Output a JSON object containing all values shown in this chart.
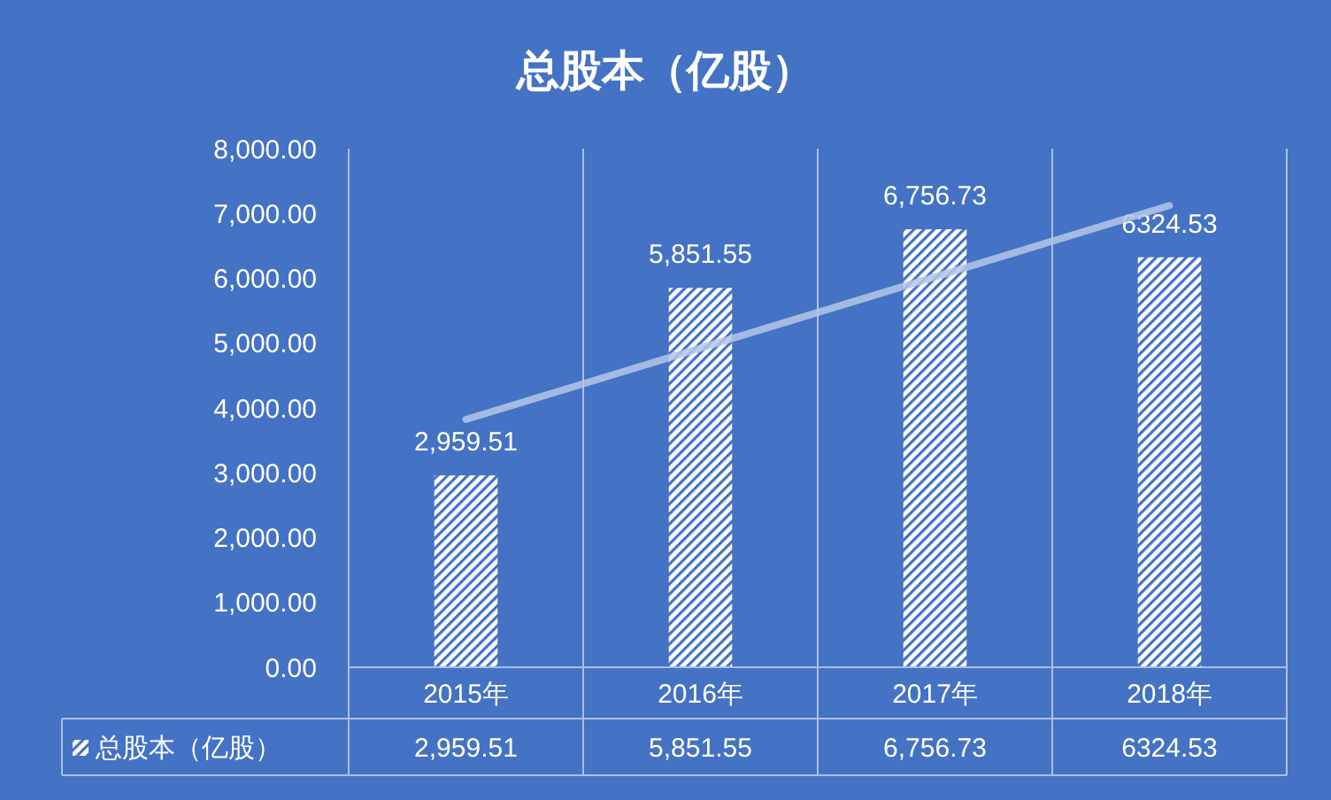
{
  "chart_data": {
    "type": "bar",
    "title": "总股本（亿股）",
    "categories": [
      "2015年",
      "2016年",
      "2017年",
      "2018年"
    ],
    "series": [
      {
        "name": "总股本（亿股）",
        "color": "#ffffff",
        "values": [
          2959.51,
          5851.55,
          6756.73,
          6324.53
        ],
        "value_labels": [
          "2,959.51",
          "5,851.55",
          "6,756.73",
          "6324.53"
        ]
      },
      {
        "type": "line",
        "color": "#b4c7e7",
        "values": [
          3823,
          4923,
          6023,
          7123
        ]
      }
    ],
    "ylim": [
      0,
      8000
    ],
    "yticks": [
      {
        "value": 0,
        "label": "0.00"
      },
      {
        "value": 1000,
        "label": "1,000.00"
      },
      {
        "value": 2000,
        "label": "2,000.00"
      },
      {
        "value": 3000,
        "label": "3,000.00"
      },
      {
        "value": 4000,
        "label": "4,000.00"
      },
      {
        "value": 5000,
        "label": "5,000.00"
      },
      {
        "value": 6000,
        "label": "6,000.00"
      },
      {
        "value": 7000,
        "label": "7,000.00"
      },
      {
        "value": 8000,
        "label": "8,000.00"
      }
    ],
    "grid": "x",
    "legend": "bottom left"
  }
}
